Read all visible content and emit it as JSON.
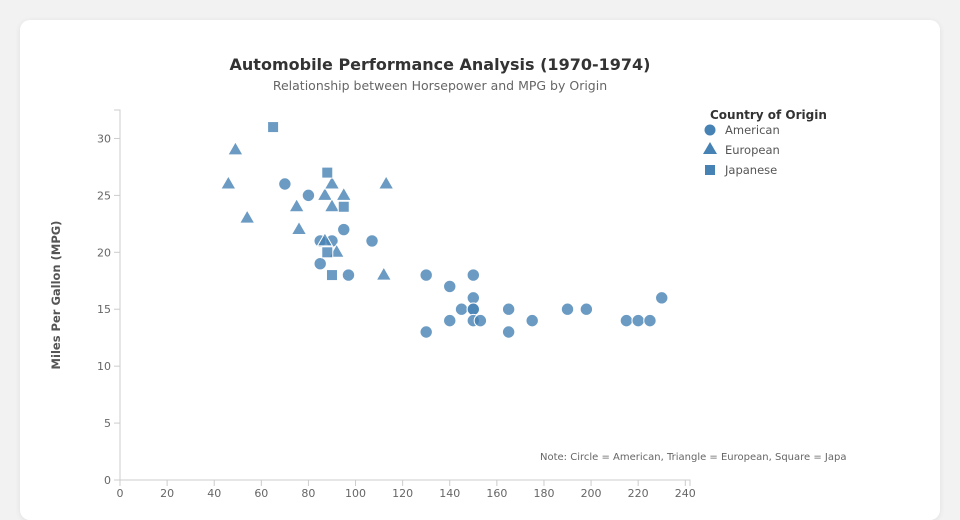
{
  "chart_data": {
    "type": "scatter",
    "title": "Automobile Performance Analysis (1970-1974)",
    "subtitle": "Relationship between Horsepower and MPG by Origin",
    "xlabel": "",
    "ylabel": "Miles Per Gallon (MPG)",
    "xlim": [
      0,
      242
    ],
    "ylim": [
      0,
      32.5
    ],
    "x_ticks": [
      "0",
      "20",
      "40",
      "60",
      "80",
      "100",
      "120",
      "140",
      "160",
      "180",
      "200",
      "220",
      "240"
    ],
    "y_ticks": [
      "0",
      "5",
      "10",
      "15",
      "20",
      "25",
      "30"
    ],
    "grid": false,
    "legend": {
      "title": "Country of Origin",
      "position": "top-right",
      "entries": [
        {
          "label": "American",
          "shape": "circle"
        },
        {
          "label": "European",
          "shape": "triangle"
        },
        {
          "label": "Japanese",
          "shape": "square"
        }
      ]
    },
    "note": "Note: Circle = American, Triangle = European, Square = Japa",
    "color": "#4682b4",
    "series": [
      {
        "name": "American",
        "shape": "circle",
        "points": [
          [
            70,
            26
          ],
          [
            80,
            25
          ],
          [
            95,
            22
          ],
          [
            85,
            21
          ],
          [
            90,
            21
          ],
          [
            107,
            21
          ],
          [
            85,
            19
          ],
          [
            97,
            18
          ],
          [
            130,
            18
          ],
          [
            150,
            18
          ],
          [
            140,
            17
          ],
          [
            150,
            16
          ],
          [
            145,
            15
          ],
          [
            150,
            15
          ],
          [
            150,
            15
          ],
          [
            165,
            15
          ],
          [
            140,
            14
          ],
          [
            150,
            14
          ],
          [
            153,
            14
          ],
          [
            175,
            14
          ],
          [
            130,
            13
          ],
          [
            165,
            13
          ],
          [
            190,
            15
          ],
          [
            198,
            15
          ],
          [
            215,
            14
          ],
          [
            220,
            14
          ],
          [
            225,
            14
          ],
          [
            230,
            16
          ]
        ]
      },
      {
        "name": "European",
        "shape": "triangle",
        "points": [
          [
            46,
            26
          ],
          [
            49,
            29
          ],
          [
            54,
            23
          ],
          [
            75,
            24
          ],
          [
            76,
            22
          ],
          [
            87,
            25
          ],
          [
            90,
            26
          ],
          [
            90,
            24
          ],
          [
            95,
            25
          ],
          [
            87,
            21
          ],
          [
            92,
            20
          ],
          [
            112,
            18
          ],
          [
            113,
            26
          ]
        ]
      },
      {
        "name": "Japanese",
        "shape": "square",
        "points": [
          [
            65,
            31
          ],
          [
            88,
            27
          ],
          [
            95,
            24
          ],
          [
            88,
            20
          ],
          [
            90,
            18
          ]
        ]
      }
    ]
  }
}
